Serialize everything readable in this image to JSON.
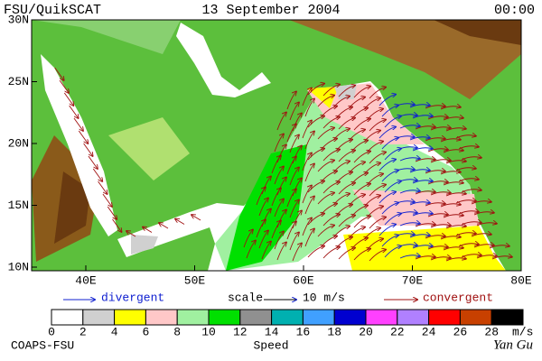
{
  "header": {
    "left": "FSU/QuikSCAT",
    "center": "13 September 2004",
    "right": "00:00"
  },
  "map": {
    "lat_labels": [
      "30N",
      "25N",
      "20N",
      "15N",
      "10N"
    ],
    "lon_labels": [
      "40E",
      "50E",
      "60E",
      "70E",
      "80E"
    ]
  },
  "legend": {
    "divergent": "divergent",
    "scale": "scale",
    "scale_value": "10 m/s",
    "convergent": "convergent"
  },
  "colorbar": {
    "colors": [
      "#ffffff",
      "#d0d0d0",
      "#ffff00",
      "#ffc8c8",
      "#a0f0a0",
      "#00e000",
      "#909090",
      "#00b0b0",
      "#40a0ff",
      "#0000d0",
      "#ff40ff",
      "#b080ff",
      "#ff0000",
      "#c84000",
      "#000000"
    ],
    "labels": [
      0,
      2,
      4,
      6,
      8,
      10,
      12,
      14,
      16,
      18,
      20,
      22,
      24,
      26,
      28
    ],
    "unit": "m/s",
    "title": "Speed"
  },
  "footer": {
    "left": "COAPS-FSU",
    "right": "Yan Gu"
  }
}
